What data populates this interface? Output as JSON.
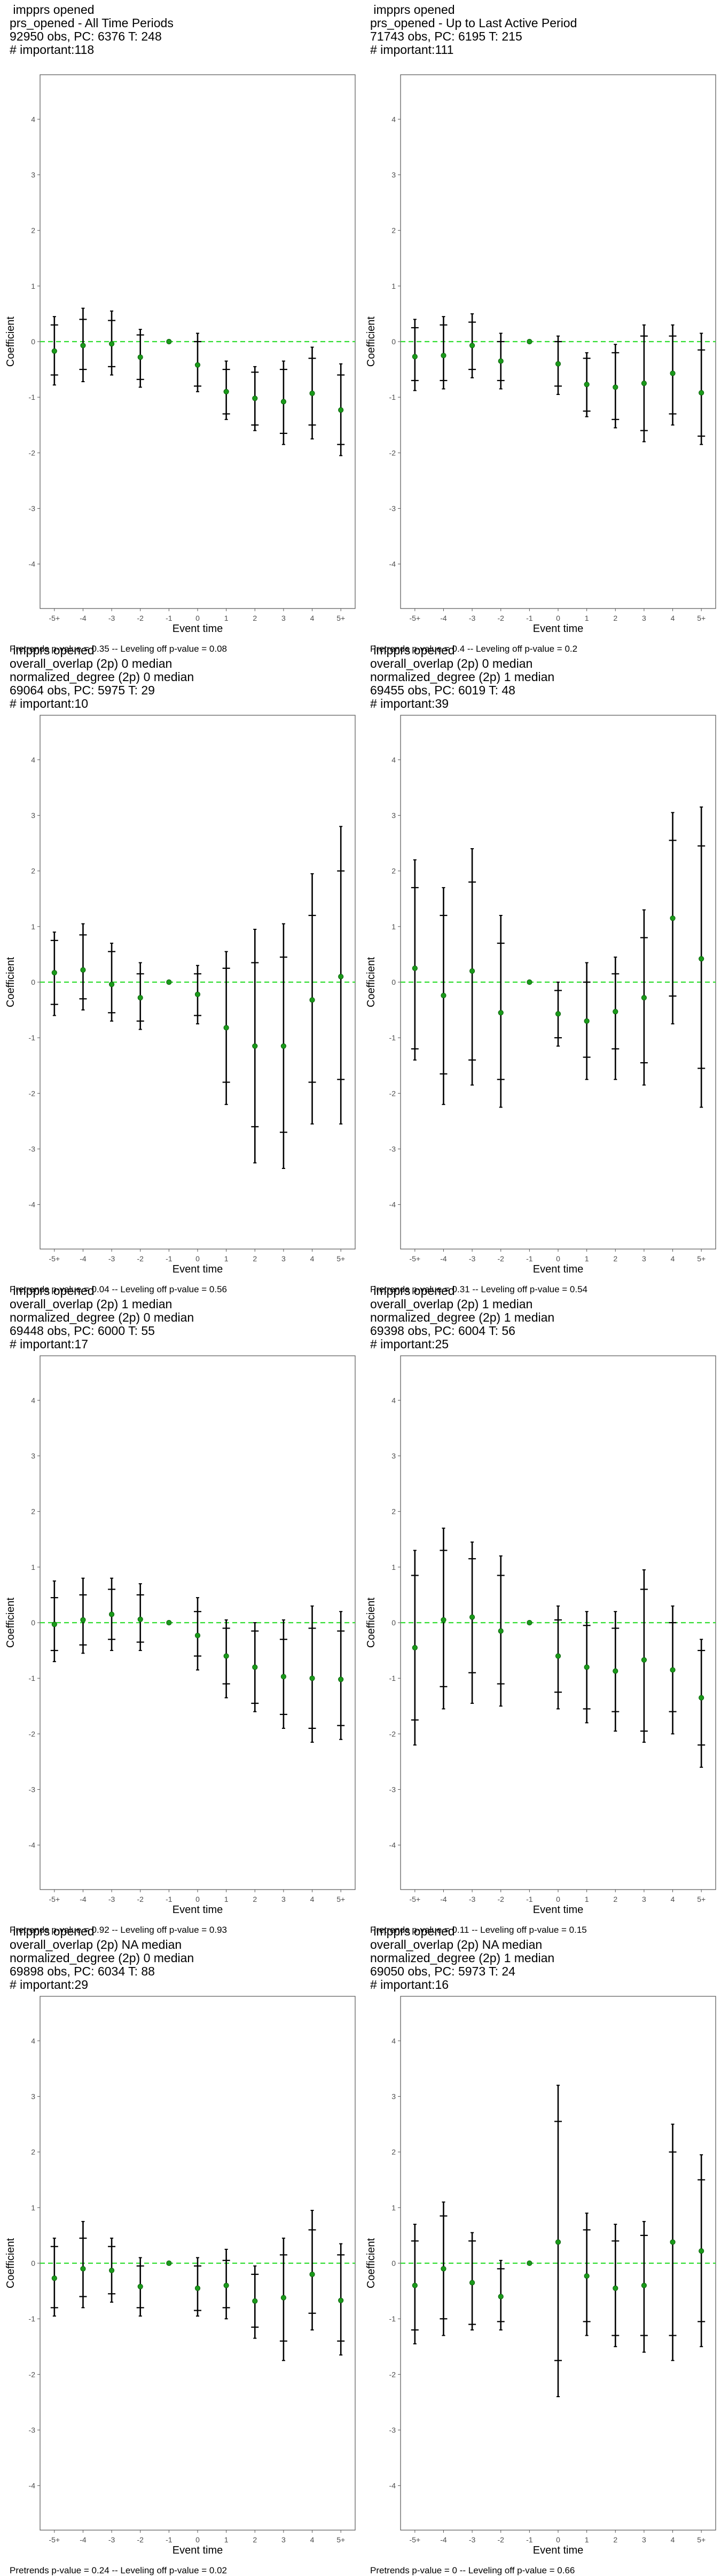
{
  "chart_data": [
    {
      "type": "coefficient-plot",
      "title_lines": [
        " impprs opened",
        "prs_opened - All Time Periods",
        "92950 obs, PC: 6376 T: 248",
        "# important:118"
      ],
      "xlabel": "Event time",
      "ylabel": "Coefficient",
      "ylim": [
        -4.8,
        4.8
      ],
      "yticks": [
        -4,
        -3,
        -2,
        -1,
        0,
        1,
        2,
        3,
        4
      ],
      "categories": [
        "-5+",
        "-4",
        "-3",
        "-2",
        "-1",
        "0",
        "1",
        "2",
        "3",
        "4",
        "5+"
      ],
      "estimate": [
        -0.17,
        -0.07,
        -0.04,
        -0.28,
        0.0,
        -0.42,
        -0.9,
        -1.02,
        -1.08,
        -0.93,
        -1.23
      ],
      "ci90": [
        [
          -0.6,
          0.3
        ],
        [
          -0.5,
          0.4
        ],
        [
          -0.45,
          0.38
        ],
        [
          -0.68,
          0.12
        ],
        [
          0,
          0
        ],
        [
          -0.8,
          0.0
        ],
        [
          -1.3,
          -0.5
        ],
        [
          -1.5,
          -0.55
        ],
        [
          -1.65,
          -0.5
        ],
        [
          -1.5,
          -0.3
        ],
        [
          -1.85,
          -0.6
        ]
      ],
      "ci95": [
        [
          -0.78,
          0.45
        ],
        [
          -0.72,
          0.6
        ],
        [
          -0.6,
          0.55
        ],
        [
          -0.82,
          0.22
        ],
        [
          0,
          0
        ],
        [
          -0.9,
          0.15
        ],
        [
          -1.4,
          -0.35
        ],
        [
          -1.6,
          -0.45
        ],
        [
          -1.85,
          -0.35
        ],
        [
          -1.75,
          -0.1
        ],
        [
          -2.05,
          -0.4
        ]
      ],
      "reference_line": 0,
      "footnote": "Pretrends p-value = 0.35 -- Leveling off p-value = 0.08"
    },
    {
      "type": "coefficient-plot",
      "title_lines": [
        " impprs opened",
        "prs_opened - Up to Last Active Period",
        "71743 obs, PC: 6195 T: 215",
        "# important:111"
      ],
      "xlabel": "Event time",
      "ylabel": "Coefficient",
      "ylim": [
        -4.8,
        4.8
      ],
      "yticks": [
        -4,
        -3,
        -2,
        -1,
        0,
        1,
        2,
        3,
        4
      ],
      "categories": [
        "-5+",
        "-4",
        "-3",
        "-2",
        "-1",
        "0",
        "1",
        "2",
        "3",
        "4",
        "5+"
      ],
      "estimate": [
        -0.27,
        -0.25,
        -0.07,
        -0.35,
        0.0,
        -0.4,
        -0.77,
        -0.82,
        -0.75,
        -0.57,
        -0.92
      ],
      "ci90": [
        [
          -0.7,
          0.25
        ],
        [
          -0.7,
          0.3
        ],
        [
          -0.5,
          0.35
        ],
        [
          -0.7,
          0.0
        ],
        [
          0,
          0
        ],
        [
          -0.8,
          0.0
        ],
        [
          -1.25,
          -0.3
        ],
        [
          -1.4,
          -0.2
        ],
        [
          -1.6,
          0.1
        ],
        [
          -1.3,
          0.1
        ],
        [
          -1.7,
          -0.15
        ]
      ],
      "ci95": [
        [
          -0.88,
          0.4
        ],
        [
          -0.85,
          0.45
        ],
        [
          -0.65,
          0.5
        ],
        [
          -0.85,
          0.15
        ],
        [
          0,
          0
        ],
        [
          -0.95,
          0.1
        ],
        [
          -1.35,
          -0.2
        ],
        [
          -1.55,
          -0.05
        ],
        [
          -1.8,
          0.3
        ],
        [
          -1.5,
          0.3
        ],
        [
          -1.85,
          0.15
        ]
      ],
      "reference_line": 0,
      "footnote": "Pretrends p-value = 0.4 -- Leveling off p-value = 0.2"
    },
    {
      "type": "coefficient-plot",
      "title_lines": [
        " impprs opened",
        "overall_overlap (2p) 0 median",
        "normalized_degree (2p) 0 median",
        "69064 obs, PC: 5975 T: 29",
        "# important:10"
      ],
      "xlabel": "Event time",
      "ylabel": "Coefficient",
      "ylim": [
        -4.8,
        4.8
      ],
      "yticks": [
        -4,
        -3,
        -2,
        -1,
        0,
        1,
        2,
        3,
        4
      ],
      "categories": [
        "-5+",
        "-4",
        "-3",
        "-2",
        "-1",
        "0",
        "1",
        "2",
        "3",
        "4",
        "5+"
      ],
      "estimate": [
        0.17,
        0.22,
        -0.04,
        -0.28,
        0.0,
        -0.22,
        -0.82,
        -1.15,
        -1.15,
        -0.32,
        0.1
      ],
      "ci90": [
        [
          -0.4,
          0.75
        ],
        [
          -0.3,
          0.85
        ],
        [
          -0.55,
          0.55
        ],
        [
          -0.7,
          0.15
        ],
        [
          0,
          0
        ],
        [
          -0.6,
          0.15
        ],
        [
          -1.8,
          0.25
        ],
        [
          -2.6,
          0.35
        ],
        [
          -2.7,
          0.45
        ],
        [
          -1.8,
          1.2
        ],
        [
          -1.75,
          2.0
        ]
      ],
      "ci95": [
        [
          -0.6,
          0.9
        ],
        [
          -0.5,
          1.05
        ],
        [
          -0.7,
          0.7
        ],
        [
          -0.85,
          0.35
        ],
        [
          0,
          0
        ],
        [
          -0.75,
          0.3
        ],
        [
          -2.2,
          0.55
        ],
        [
          -3.25,
          0.95
        ],
        [
          -3.35,
          1.05
        ],
        [
          -2.55,
          1.95
        ],
        [
          -2.55,
          2.8
        ]
      ],
      "reference_line": 0,
      "footnote": "Pretrends p-value = 0.04 -- Leveling off p-value = 0.56"
    },
    {
      "type": "coefficient-plot",
      "title_lines": [
        " impprs opened",
        "overall_overlap (2p) 0 median",
        "normalized_degree (2p) 1 median",
        "69455 obs, PC: 6019 T: 48",
        "# important:39"
      ],
      "xlabel": "Event time",
      "ylabel": "Coefficient",
      "ylim": [
        -4.8,
        4.8
      ],
      "yticks": [
        -4,
        -3,
        -2,
        -1,
        0,
        1,
        2,
        3,
        4
      ],
      "categories": [
        "-5+",
        "-4",
        "-3",
        "-2",
        "-1",
        "0",
        "1",
        "2",
        "3",
        "4",
        "5+"
      ],
      "estimate": [
        0.25,
        -0.24,
        0.2,
        -0.55,
        0.0,
        -0.57,
        -0.7,
        -0.53,
        -0.28,
        1.15,
        0.42
      ],
      "ci90": [
        [
          -1.2,
          1.7
        ],
        [
          -1.65,
          1.2
        ],
        [
          -1.4,
          1.8
        ],
        [
          -1.75,
          0.7
        ],
        [
          0,
          0
        ],
        [
          -1.0,
          -0.15
        ],
        [
          -1.35,
          0.0
        ],
        [
          -1.2,
          0.15
        ],
        [
          -1.45,
          0.8
        ],
        [
          -0.25,
          2.55
        ],
        [
          -1.55,
          2.45
        ]
      ],
      "ci95": [
        [
          -1.4,
          2.2
        ],
        [
          -2.2,
          1.7
        ],
        [
          -1.85,
          2.4
        ],
        [
          -2.25,
          1.2
        ],
        [
          0,
          0
        ],
        [
          -1.15,
          0.0
        ],
        [
          -1.75,
          0.35
        ],
        [
          -1.75,
          0.45
        ],
        [
          -1.85,
          1.3
        ],
        [
          -0.75,
          3.05
        ],
        [
          -2.25,
          3.15
        ]
      ],
      "reference_line": 0,
      "footnote": "Pretrends p-value = 0.31 -- Leveling off p-value = 0.54"
    },
    {
      "type": "coefficient-plot",
      "title_lines": [
        " impprs opened",
        "overall_overlap (2p) 1 median",
        "normalized_degree (2p) 0 median",
        "69448 obs, PC: 6000 T: 55",
        "# important:17"
      ],
      "xlabel": "Event time",
      "ylabel": "Coefficient",
      "ylim": [
        -4.8,
        4.8
      ],
      "yticks": [
        -4,
        -3,
        -2,
        -1,
        0,
        1,
        2,
        3,
        4
      ],
      "categories": [
        "-5+",
        "-4",
        "-3",
        "-2",
        "-1",
        "0",
        "1",
        "2",
        "3",
        "4",
        "5+"
      ],
      "estimate": [
        -0.03,
        0.05,
        0.15,
        0.06,
        0.0,
        -0.23,
        -0.6,
        -0.8,
        -0.97,
        -1.0,
        -1.02
      ],
      "ci90": [
        [
          -0.5,
          0.45
        ],
        [
          -0.4,
          0.5
        ],
        [
          -0.3,
          0.6
        ],
        [
          -0.35,
          0.5
        ],
        [
          0,
          0
        ],
        [
          -0.6,
          0.2
        ],
        [
          -1.1,
          -0.1
        ],
        [
          -1.45,
          -0.15
        ],
        [
          -1.65,
          -0.3
        ],
        [
          -1.9,
          -0.1
        ],
        [
          -1.85,
          -0.15
        ]
      ],
      "ci95": [
        [
          -0.7,
          0.75
        ],
        [
          -0.55,
          0.8
        ],
        [
          -0.5,
          0.8
        ],
        [
          -0.5,
          0.7
        ],
        [
          0,
          0
        ],
        [
          -0.85,
          0.45
        ],
        [
          -1.35,
          0.05
        ],
        [
          -1.6,
          0.0
        ],
        [
          -1.9,
          0.05
        ],
        [
          -2.15,
          0.3
        ],
        [
          -2.1,
          0.2
        ]
      ],
      "reference_line": 0,
      "footnote": "Pretrends p-value = 0.92 -- Leveling off p-value = 0.93"
    },
    {
      "type": "coefficient-plot",
      "title_lines": [
        " impprs opened",
        "overall_overlap (2p) 1 median",
        "normalized_degree (2p) 1 median",
        "69398 obs, PC: 6004 T: 56",
        "# important:25"
      ],
      "xlabel": "Event time",
      "ylabel": "Coefficient",
      "ylim": [
        -4.8,
        4.8
      ],
      "yticks": [
        -4,
        -3,
        -2,
        -1,
        0,
        1,
        2,
        3,
        4
      ],
      "categories": [
        "-5+",
        "-4",
        "-3",
        "-2",
        "-1",
        "0",
        "1",
        "2",
        "3",
        "4",
        "5+"
      ],
      "estimate": [
        -0.45,
        0.05,
        0.1,
        -0.15,
        0.0,
        -0.6,
        -0.8,
        -0.87,
        -0.67,
        -0.85,
        -1.35
      ],
      "ci90": [
        [
          -1.75,
          0.85
        ],
        [
          -1.15,
          1.3
        ],
        [
          -0.9,
          1.15
        ],
        [
          -1.1,
          0.85
        ],
        [
          0,
          0
        ],
        [
          -1.25,
          0.05
        ],
        [
          -1.55,
          -0.05
        ],
        [
          -1.6,
          -0.1
        ],
        [
          -1.95,
          0.6
        ],
        [
          -1.6,
          0.0
        ],
        [
          -2.2,
          -0.5
        ]
      ],
      "ci95": [
        [
          -2.2,
          1.3
        ],
        [
          -1.55,
          1.7
        ],
        [
          -1.45,
          1.45
        ],
        [
          -1.5,
          1.2
        ],
        [
          0,
          0
        ],
        [
          -1.55,
          0.3
        ],
        [
          -1.8,
          0.2
        ],
        [
          -1.95,
          0.2
        ],
        [
          -2.15,
          0.95
        ],
        [
          -2.0,
          0.3
        ],
        [
          -2.6,
          -0.3
        ]
      ],
      "reference_line": 0,
      "footnote": "Pretrends p-value = 0.11 -- Leveling off p-value = 0.15"
    },
    {
      "type": "coefficient-plot",
      "title_lines": [
        " impprs opened",
        "overall_overlap (2p) NA median",
        "normalized_degree (2p) 0 median",
        "69898 obs, PC: 6034 T: 88",
        "# important:29"
      ],
      "xlabel": "Event time",
      "ylabel": "Coefficient",
      "ylim": [
        -4.8,
        4.8
      ],
      "yticks": [
        -4,
        -3,
        -2,
        -1,
        0,
        1,
        2,
        3,
        4
      ],
      "categories": [
        "-5+",
        "-4",
        "-3",
        "-2",
        "-1",
        "0",
        "1",
        "2",
        "3",
        "4",
        "5+"
      ],
      "estimate": [
        -0.27,
        -0.1,
        -0.13,
        -0.42,
        0.0,
        -0.45,
        -0.4,
        -0.68,
        -0.62,
        -0.2,
        -0.67
      ],
      "ci90": [
        [
          -0.8,
          0.3
        ],
        [
          -0.6,
          0.45
        ],
        [
          -0.55,
          0.3
        ],
        [
          -0.8,
          -0.05
        ],
        [
          0,
          0
        ],
        [
          -0.85,
          -0.05
        ],
        [
          -0.8,
          0.05
        ],
        [
          -1.15,
          -0.2
        ],
        [
          -1.4,
          0.15
        ],
        [
          -0.9,
          0.6
        ],
        [
          -1.4,
          0.15
        ]
      ],
      "ci95": [
        [
          -0.95,
          0.45
        ],
        [
          -0.8,
          0.75
        ],
        [
          -0.7,
          0.45
        ],
        [
          -0.95,
          0.1
        ],
        [
          0,
          0
        ],
        [
          -0.95,
          0.1
        ],
        [
          -1.0,
          0.25
        ],
        [
          -1.35,
          -0.05
        ],
        [
          -1.75,
          0.45
        ],
        [
          -1.2,
          0.95
        ],
        [
          -1.65,
          0.35
        ]
      ],
      "reference_line": 0,
      "footnote": "Pretrends p-value = 0.24 -- Leveling off p-value = 0.02"
    },
    {
      "type": "coefficient-plot",
      "title_lines": [
        " impprs opened",
        "overall_overlap (2p) NA median",
        "normalized_degree (2p) 1 median",
        "69050 obs, PC: 5973 T: 24",
        "# important:16"
      ],
      "xlabel": "Event time",
      "ylabel": "Coefficient",
      "ylim": [
        -4.8,
        4.8
      ],
      "yticks": [
        -4,
        -3,
        -2,
        -1,
        0,
        1,
        2,
        3,
        4
      ],
      "categories": [
        "-5+",
        "-4",
        "-3",
        "-2",
        "-1",
        "0",
        "1",
        "2",
        "3",
        "4",
        "5+"
      ],
      "estimate": [
        -0.4,
        -0.1,
        -0.35,
        -0.6,
        0.0,
        0.38,
        -0.23,
        -0.45,
        -0.4,
        0.38,
        0.22
      ],
      "ci90": [
        [
          -1.2,
          0.4
        ],
        [
          -1.0,
          0.85
        ],
        [
          -1.1,
          0.4
        ],
        [
          -1.05,
          -0.1
        ],
        [
          0,
          0
        ],
        [
          -1.75,
          2.55
        ],
        [
          -1.05,
          0.6
        ],
        [
          -1.3,
          0.4
        ],
        [
          -1.3,
          0.5
        ],
        [
          -1.3,
          2.0
        ],
        [
          -1.05,
          1.5
        ]
      ],
      "ci95": [
        [
          -1.45,
          0.7
        ],
        [
          -1.3,
          1.1
        ],
        [
          -1.2,
          0.55
        ],
        [
          -1.2,
          0.05
        ],
        [
          0,
          0
        ],
        [
          -2.4,
          3.2
        ],
        [
          -1.3,
          0.9
        ],
        [
          -1.5,
          0.7
        ],
        [
          -1.6,
          0.75
        ],
        [
          -1.75,
          2.5
        ],
        [
          -1.5,
          1.95
        ]
      ],
      "reference_line": 0,
      "footnote": "Pretrends p-value = 0 -- Leveling off p-value = 0.66"
    }
  ]
}
